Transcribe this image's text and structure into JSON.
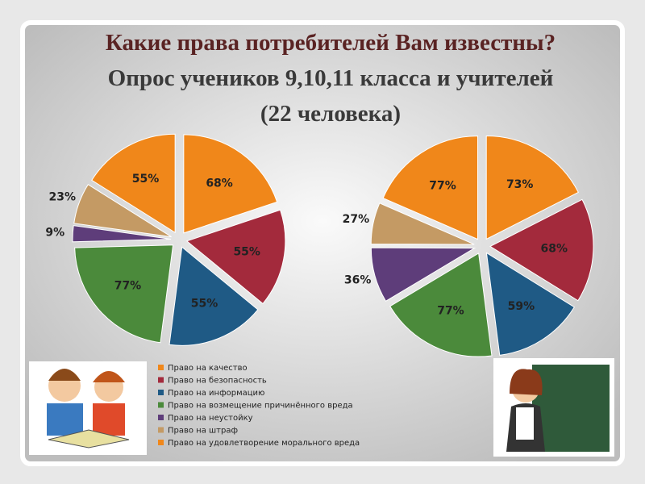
{
  "title": [
    "Какие права потребителей Вам известны?",
    "Опрос учеников 9,10,11 класса и учителей",
    "(22 человека)"
  ],
  "legend": [
    {
      "label": "Право на качество",
      "color": "#f0871a"
    },
    {
      "label": "Право на безопасность",
      "color": "#a32a3c"
    },
    {
      "label": "Право на информацию",
      "color": "#1f5a85"
    },
    {
      "label": "Право на возмещение причинённого вреда",
      "color": "#4b8a3b"
    },
    {
      "label": "Право на неустойку",
      "color": "#5e3d7a"
    },
    {
      "label": "Право на штраф",
      "color": "#c49a64"
    },
    {
      "label": "Право на удовлетворение морального вреда",
      "color": "#f0871a"
    }
  ],
  "chart_data": [
    {
      "type": "pie",
      "values": [
        68,
        55,
        55,
        77,
        9,
        23,
        55
      ],
      "value_labels": [
        "68%",
        "55%",
        "55%",
        "77%",
        "9%",
        "23%",
        "55%"
      ]
    },
    {
      "type": "pie",
      "values": [
        73,
        68,
        59,
        77,
        36,
        27,
        77
      ],
      "value_labels": [
        "73%",
        "68%",
        "59%",
        "77%",
        "36%",
        "27%",
        "77%"
      ]
    }
  ]
}
